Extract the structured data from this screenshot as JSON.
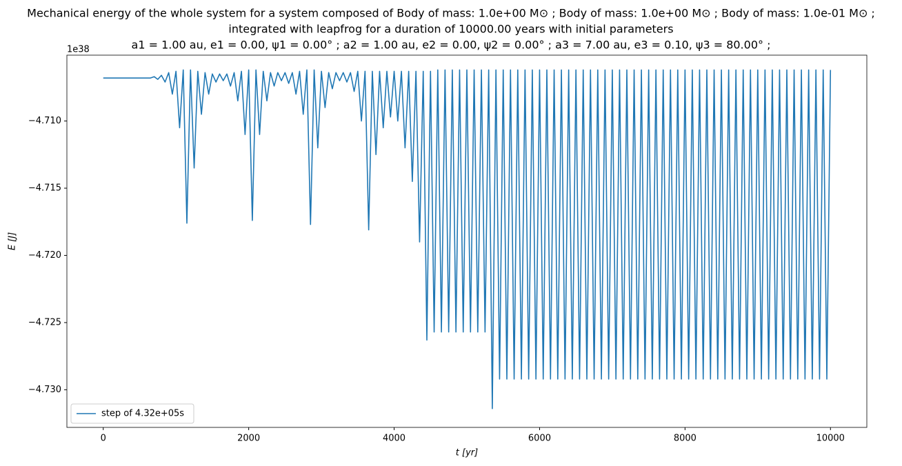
{
  "chart_data": {
    "type": "line",
    "title": [
      "Mechanical energy of the whole system for a system composed of Body of mass: 1.0e+00 M⊙ ; Body of mass: 1.0e+00 M⊙ ; Body of mass: 1.0e-01 M⊙ ;",
      "integrated with leapfrog for a duration of 10000.00 years with initial parameters",
      "a1 = 1.00 au, e1 = 0.00, ψ1 = 0.00° ; a2 = 1.00 au, e2 = 0.00, ψ2 = 0.00° ; a3 = 7.00 au, e3 = 0.10, ψ3 = 80.00° ;"
    ],
    "x_label": "t [yr]",
    "y_label": "E [J]",
    "y_offset_label": "1e38",
    "xlim": [
      -500,
      10500
    ],
    "xticks": [
      0,
      2000,
      4000,
      6000,
      8000,
      10000
    ],
    "ylim": [
      -4.7328,
      -4.7051
    ],
    "yticks": [
      {
        "value": -4.71,
        "label": "−4.710"
      },
      {
        "value": -4.715,
        "label": "−4.715"
      },
      {
        "value": -4.72,
        "label": "−4.720"
      },
      {
        "value": -4.725,
        "label": "−4.725"
      },
      {
        "value": -4.73,
        "label": "−4.730"
      }
    ],
    "grid": false,
    "legend_position": "lower left",
    "x": [
      0,
      50,
      100,
      150,
      200,
      250,
      300,
      350,
      400,
      450,
      500,
      550,
      600,
      650,
      700,
      750,
      800,
      850,
      900,
      950,
      1000,
      1050,
      1100,
      1150,
      1200,
      1250,
      1300,
      1350,
      1400,
      1450,
      1500,
      1550,
      1600,
      1650,
      1700,
      1750,
      1800,
      1850,
      1900,
      1950,
      2000,
      2050,
      2100,
      2150,
      2200,
      2250,
      2300,
      2350,
      2400,
      2450,
      2500,
      2550,
      2600,
      2650,
      2700,
      2750,
      2800,
      2850,
      2900,
      2950,
      3000,
      3050,
      3100,
      3150,
      3200,
      3250,
      3300,
      3350,
      3400,
      3450,
      3500,
      3550,
      3600,
      3650,
      3700,
      3750,
      3800,
      3850,
      3900,
      3950,
      4000,
      4050,
      4100,
      4150,
      4200,
      4250,
      4300,
      4350,
      4400,
      4450,
      4500,
      4550,
      4600,
      4650,
      4700,
      4750,
      4800,
      4850,
      4900,
      4950,
      5000,
      5050,
      5100,
      5150,
      5200,
      5250,
      5300,
      5350,
      5400,
      5450,
      5500,
      5550,
      5600,
      5650,
      5700,
      5750,
      5800,
      5850,
      5900,
      5950,
      6000,
      6050,
      6100,
      6150,
      6200,
      6250,
      6300,
      6350,
      6400,
      6450,
      6500,
      6550,
      6600,
      6650,
      6700,
      6750,
      6800,
      6850,
      6900,
      6950,
      7000,
      7050,
      7100,
      7150,
      7200,
      7250,
      7300,
      7350,
      7400,
      7450,
      7500,
      7550,
      7600,
      7650,
      7700,
      7750,
      7800,
      7850,
      7900,
      7950,
      8000,
      8050,
      8100,
      8150,
      8200,
      8250,
      8300,
      8350,
      8400,
      8450,
      8500,
      8550,
      8600,
      8650,
      8700,
      8750,
      8800,
      8850,
      8900,
      8950,
      9000,
      9050,
      9100,
      9150,
      9200,
      9250,
      9300,
      9350,
      9400,
      9450,
      9500,
      9550,
      9600,
      9650,
      9700,
      9750,
      9800,
      9850,
      9900,
      9950,
      10000
    ],
    "series": [
      {
        "name": "step of 4.32e+05s",
        "color": "#1f77b4",
        "values": [
          -4.7068,
          -4.7068,
          -4.7068,
          -4.7068,
          -4.7068,
          -4.7068,
          -4.7068,
          -4.7068,
          -4.7068,
          -4.7068,
          -4.7068,
          -4.7068,
          -4.7068,
          -4.7068,
          -4.7067,
          -4.7069,
          -4.7066,
          -4.7071,
          -4.7064,
          -4.708,
          -4.7063,
          -4.7105,
          -4.7062,
          -4.7176,
          -4.7062,
          -4.7135,
          -4.7063,
          -4.7095,
          -4.7064,
          -4.708,
          -4.7065,
          -4.7071,
          -4.7065,
          -4.707,
          -4.7065,
          -4.7074,
          -4.7064,
          -4.7085,
          -4.7063,
          -4.711,
          -4.7062,
          -4.7174,
          -4.7062,
          -4.711,
          -4.7063,
          -4.7085,
          -4.7064,
          -4.7074,
          -4.7064,
          -4.707,
          -4.7064,
          -4.7072,
          -4.7064,
          -4.708,
          -4.7063,
          -4.7095,
          -4.7062,
          -4.7177,
          -4.7062,
          -4.712,
          -4.7063,
          -4.709,
          -4.7064,
          -4.7076,
          -4.7064,
          -4.707,
          -4.7064,
          -4.7071,
          -4.7064,
          -4.7078,
          -4.7063,
          -4.71,
          -4.7063,
          -4.7181,
          -4.7063,
          -4.7125,
          -4.7063,
          -4.7105,
          -4.7063,
          -4.7097,
          -4.7063,
          -4.71,
          -4.7063,
          -4.712,
          -4.7063,
          -4.7145,
          -4.7063,
          -4.719,
          -4.7063,
          -4.7263,
          -4.7063,
          -4.7257,
          -4.7062,
          -4.7257,
          -4.7062,
          -4.7257,
          -4.7062,
          -4.7257,
          -4.7062,
          -4.7257,
          -4.7062,
          -4.7257,
          -4.7062,
          -4.7257,
          -4.7062,
          -4.7257,
          -4.7062,
          -4.7314,
          -4.7062,
          -4.7292,
          -4.7062,
          -4.7292,
          -4.7062,
          -4.7292,
          -4.7062,
          -4.7292,
          -4.7062,
          -4.7292,
          -4.7062,
          -4.7292,
          -4.7062,
          -4.7292,
          -4.7062,
          -4.7292,
          -4.7062,
          -4.7292,
          -4.7062,
          -4.7292,
          -4.7062,
          -4.7292,
          -4.7062,
          -4.7292,
          -4.7062,
          -4.7292,
          -4.7062,
          -4.7292,
          -4.7062,
          -4.7292,
          -4.7062,
          -4.7292,
          -4.7062,
          -4.7292,
          -4.7062,
          -4.7292,
          -4.7062,
          -4.7292,
          -4.7062,
          -4.7292,
          -4.7062,
          -4.7292,
          -4.7062,
          -4.7292,
          -4.7062,
          -4.7292,
          -4.7062,
          -4.7292,
          -4.7062,
          -4.7292,
          -4.7062,
          -4.7292,
          -4.7062,
          -4.7292,
          -4.7062,
          -4.7292,
          -4.7062,
          -4.7292,
          -4.7062,
          -4.7292,
          -4.7062,
          -4.7292,
          -4.7062,
          -4.7292,
          -4.7062,
          -4.7292,
          -4.7062,
          -4.7292,
          -4.7062,
          -4.7292,
          -4.7062,
          -4.7292,
          -4.7062,
          -4.7292,
          -4.7062,
          -4.7292,
          -4.7062,
          -4.7292,
          -4.7062,
          -4.7292,
          -4.7062,
          -4.7292,
          -4.7062,
          -4.7292,
          -4.7062,
          -4.7292,
          -4.7062,
          -4.7292,
          -4.7062,
          -4.7292,
          -4.7062,
          -4.7292,
          -4.7062
        ]
      }
    ]
  }
}
